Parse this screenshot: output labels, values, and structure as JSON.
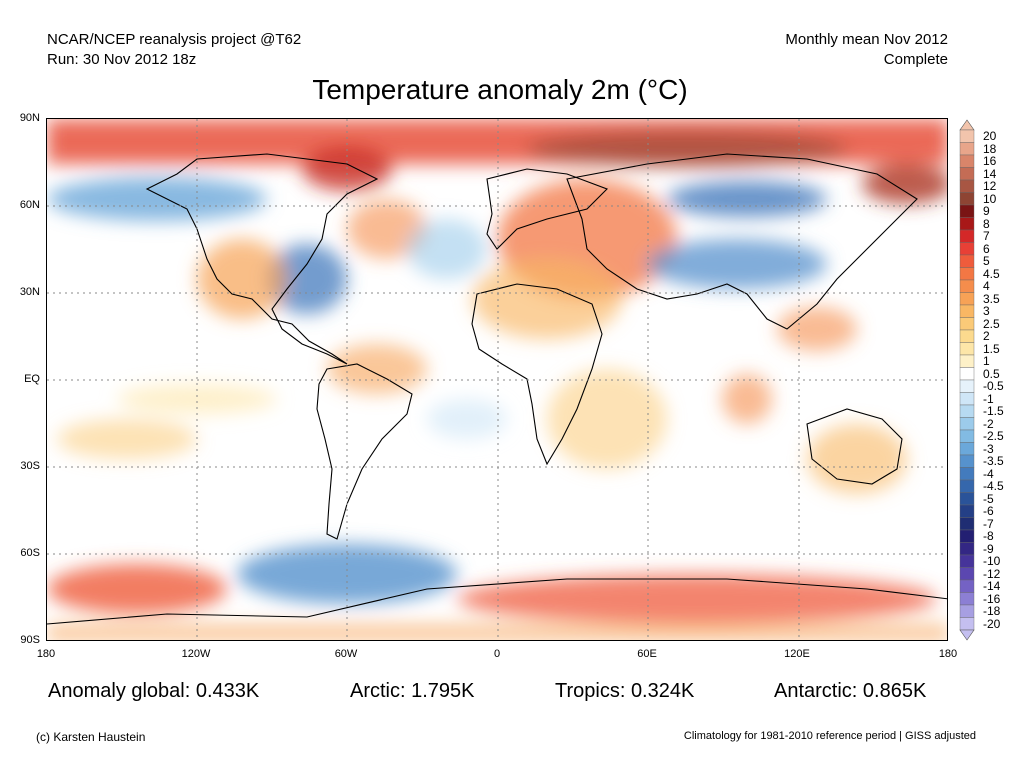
{
  "header": {
    "line1_left": "NCAR/NCEP reanalysis project @T62",
    "line2_left": "Run: 30 Nov 2012 18z",
    "line1_right": "Monthly mean Nov 2012",
    "line2_right": "Complete"
  },
  "title": "Temperature anomaly 2m (°C)",
  "map": {
    "lat_labels": [
      "90N",
      "60N",
      "30N",
      "EQ",
      "30S",
      "60S",
      "90S"
    ],
    "lon_labels": [
      "180",
      "120W",
      "60W",
      "0",
      "60E",
      "120E",
      "180"
    ]
  },
  "colorbar": {
    "labels": [
      "20",
      "18",
      "16",
      "14",
      "12",
      "10",
      "9",
      "8",
      "7",
      "6",
      "5",
      "4.5",
      "4",
      "3.5",
      "3",
      "2.5",
      "2",
      "1.5",
      "1",
      "0.5",
      "-0.5",
      "-1",
      "-1.5",
      "-2",
      "-2.5",
      "-3",
      "-3.5",
      "-4",
      "-4.5",
      "-5",
      "-6",
      "-7",
      "-8",
      "-9",
      "-10",
      "-12",
      "-14",
      "-16",
      "-18",
      "-20"
    ],
    "colors": [
      "#f2c4ac",
      "#e8a58a",
      "#d9856a",
      "#c46c55",
      "#a85643",
      "#8e4433",
      "#7a1414",
      "#a81818",
      "#d42828",
      "#e84036",
      "#ef5c3c",
      "#f37744",
      "#f58d4c",
      "#f7a256",
      "#f9b764",
      "#fbca78",
      "#fcda8e",
      "#fde6a8",
      "#fef1c8",
      "#ffffff",
      "#e6f2fb",
      "#cfe6f7",
      "#b7daf1",
      "#9ccbeb",
      "#82bbe3",
      "#6ba8da",
      "#5692cd",
      "#437bbd",
      "#3567ac",
      "#2a5399",
      "#243f86",
      "#1f2d73",
      "#231f72",
      "#332784",
      "#46349a",
      "#5b47b0",
      "#7462c4",
      "#8c7fd4",
      "#a79fe2",
      "#c4bff0"
    ]
  },
  "stats": {
    "global": "Anomaly global: 0.433K",
    "arctic": "Arctic: 1.795K",
    "tropics": "Tropics: 0.324K",
    "antarctic": "Antarctic: 0.865K"
  },
  "footer": {
    "left": "(c) Karsten Haustein",
    "right": "Climatology for 1981-2010 reference period | GISS adjusted"
  }
}
